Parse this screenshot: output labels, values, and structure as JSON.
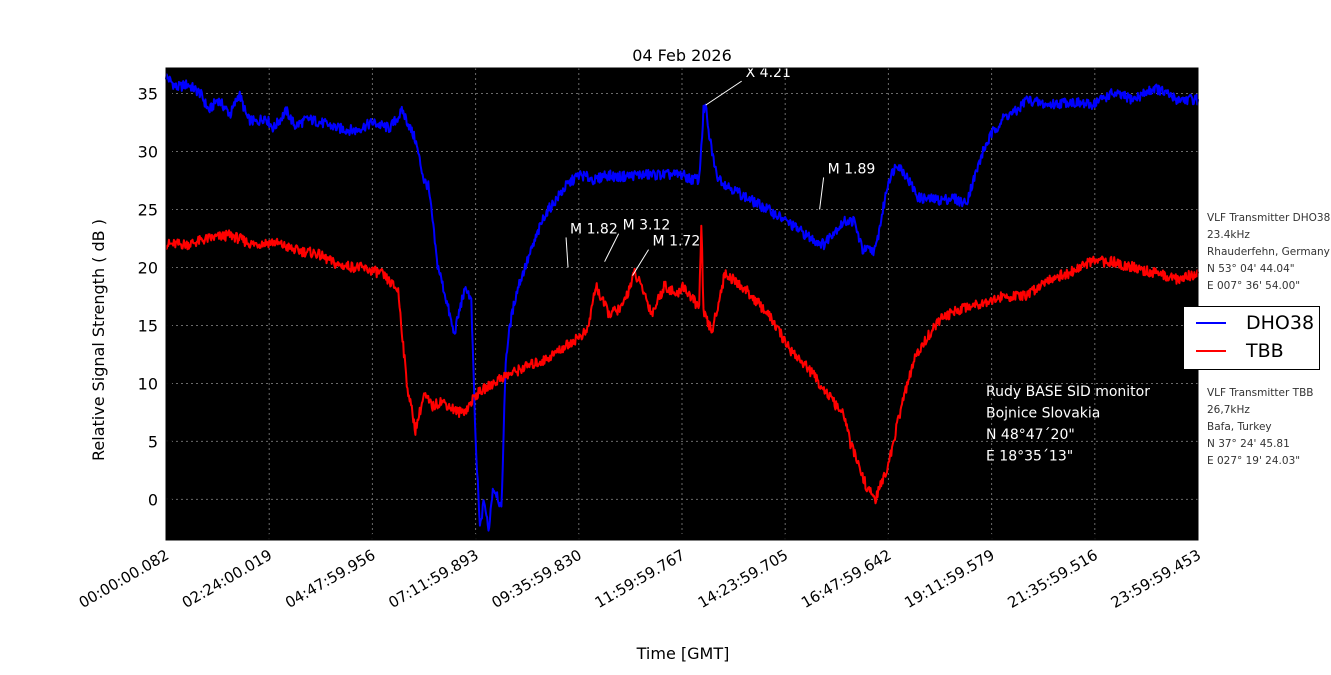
{
  "chart_data": {
    "type": "line",
    "title": "04 Feb 2026",
    "xlabel": "Time [GMT]",
    "ylabel": "Relative Signal Strength ( dB )",
    "xlim": [
      0.0,
      24.0
    ],
    "ylim": [
      -3.5,
      37.2
    ],
    "yticks": [
      0,
      5,
      10,
      15,
      20,
      25,
      30,
      35
    ],
    "xticks": [
      {
        "h": 0.0,
        "label": "00:00:00.082"
      },
      {
        "h": 2.4,
        "label": "02:24:00.019"
      },
      {
        "h": 4.8,
        "label": "04:47:59.956"
      },
      {
        "h": 7.2,
        "label": "07:11:59.893"
      },
      {
        "h": 9.6,
        "label": "09:35:59.830"
      },
      {
        "h": 12.0,
        "label": "11:59:59.767"
      },
      {
        "h": 14.4,
        "label": "14:23:59.705"
      },
      {
        "h": 16.8,
        "label": "16:47:59.642"
      },
      {
        "h": 19.2,
        "label": "19:11:59.579"
      },
      {
        "h": 21.6,
        "label": "21:35:59.516"
      },
      {
        "h": 24.0,
        "label": "23:59:59.453"
      }
    ],
    "grid": true,
    "background": "#000000",
    "series": [
      {
        "name": "DHO38",
        "color": "#0000ff",
        "x": [
          0.0,
          0.25,
          0.5,
          0.8,
          1.0,
          1.2,
          1.5,
          1.7,
          1.9,
          2.1,
          2.3,
          2.5,
          2.8,
          3.0,
          3.3,
          3.6,
          4.0,
          4.4,
          4.8,
          5.2,
          5.5,
          5.8,
          6.0,
          6.1,
          6.2,
          6.3,
          6.5,
          6.7,
          6.9,
          7.0,
          7.1,
          7.2,
          7.3,
          7.4,
          7.5,
          7.6,
          7.7,
          7.8,
          7.9,
          8.0,
          8.1,
          8.2,
          8.4,
          8.6,
          8.8,
          9.0,
          9.3,
          9.6,
          9.8,
          10.0,
          10.2,
          10.5,
          11.0,
          11.5,
          12.0,
          12.2,
          12.4,
          12.5,
          12.55,
          12.6,
          12.7,
          12.8,
          13.0,
          13.5,
          14.0,
          14.5,
          15.0,
          15.3,
          15.5,
          15.8,
          16.0,
          16.2,
          16.5,
          16.8,
          17.0,
          17.2,
          17.5,
          18.0,
          18.3,
          18.6,
          19.0,
          19.2,
          19.5,
          19.8,
          20.0,
          20.5,
          21.0,
          21.5,
          22.0,
          22.5,
          23.0,
          23.5,
          24.0
        ],
        "y": [
          36.5,
          35.5,
          35.8,
          35.0,
          33.5,
          34.5,
          33.2,
          35.0,
          32.8,
          32.5,
          33.0,
          32.0,
          33.5,
          32.2,
          32.8,
          32.5,
          32.0,
          31.8,
          32.5,
          32.0,
          33.5,
          31.0,
          27.5,
          27.0,
          24.0,
          20.5,
          17.5,
          14.2,
          17.5,
          18.2,
          17.0,
          5.0,
          -2.5,
          0.0,
          -2.8,
          1.0,
          0.5,
          -1.0,
          12.0,
          15.0,
          17.0,
          18.5,
          20.5,
          22.5,
          24.5,
          25.5,
          27.0,
          28.0,
          27.8,
          27.5,
          28.0,
          27.8,
          28.0,
          28.0,
          28.0,
          27.6,
          27.6,
          33.5,
          34.0,
          32.0,
          30.0,
          28.0,
          27.2,
          26.0,
          25.0,
          23.8,
          22.5,
          22.0,
          23.0,
          24.0,
          24.0,
          21.5,
          21.5,
          27.5,
          29.0,
          28.0,
          26.0,
          25.8,
          26.0,
          25.5,
          30.0,
          31.5,
          33.0,
          33.5,
          34.5,
          34.0,
          34.3,
          34.0,
          35.0,
          34.5,
          35.5,
          34.5,
          34.5
        ]
      },
      {
        "name": "TBB",
        "color": "#ff0000",
        "x": [
          0.0,
          0.5,
          1.0,
          1.5,
          2.0,
          2.5,
          3.0,
          3.5,
          4.0,
          4.5,
          5.0,
          5.4,
          5.6,
          5.8,
          6.0,
          6.2,
          6.4,
          6.6,
          6.8,
          7.0,
          7.2,
          7.4,
          7.6,
          7.8,
          8.0,
          8.4,
          8.8,
          9.0,
          9.2,
          9.4,
          9.6,
          9.8,
          10.0,
          10.1,
          10.3,
          10.6,
          10.9,
          11.1,
          11.3,
          11.6,
          11.9,
          12.0,
          12.2,
          12.4,
          12.45,
          12.5,
          12.7,
          13.0,
          13.5,
          14.0,
          14.5,
          15.0,
          15.2,
          15.4,
          15.6,
          15.8,
          15.9,
          16.1,
          16.3,
          16.5,
          16.8,
          17.1,
          17.4,
          17.7,
          18.0,
          18.5,
          19.0,
          19.5,
          20.0,
          20.5,
          21.0,
          21.5,
          22.0,
          22.5,
          23.0,
          23.5,
          24.0
        ],
        "y": [
          22.0,
          22.0,
          22.5,
          22.8,
          22.0,
          22.2,
          21.5,
          21.2,
          20.2,
          20.0,
          19.5,
          18.0,
          10.0,
          6.0,
          9.0,
          8.0,
          8.5,
          8.0,
          7.5,
          7.8,
          9.0,
          9.5,
          10.0,
          10.5,
          10.8,
          11.5,
          12.0,
          12.5,
          13.0,
          13.5,
          14.0,
          14.5,
          18.5,
          17.5,
          16.0,
          16.5,
          19.5,
          18.0,
          16.0,
          18.5,
          17.5,
          18.5,
          17.5,
          16.5,
          24.0,
          16.0,
          14.5,
          19.5,
          18.0,
          16.0,
          13.0,
          11.0,
          10.0,
          9.0,
          8.0,
          7.0,
          5.0,
          3.0,
          1.0,
          0.0,
          3.0,
          8.0,
          12.0,
          14.0,
          15.5,
          16.5,
          17.0,
          17.5,
          17.5,
          19.0,
          19.5,
          20.5,
          20.5,
          20.0,
          19.5,
          19.0,
          19.5
        ]
      }
    ],
    "annotations": [
      {
        "text": "X 4.21",
        "x": 12.55,
        "y": 34.0
      },
      {
        "text": "M 1.82",
        "x": 9.35,
        "y": 20.0
      },
      {
        "text": "M 3.12",
        "x": 10.2,
        "y": 20.5
      },
      {
        "text": "M 1.72",
        "x": 10.85,
        "y": 19.3
      },
      {
        "text": "M 1.89",
        "x": 15.2,
        "y": 25.0
      }
    ],
    "station_text": [
      "Rudy BASE SID monitor",
      "Bojnice Slovakia",
      "N 48°47´20\"",
      "E 18°35´13\""
    ],
    "legend": [
      {
        "name": "DHO38",
        "color": "#0000ff"
      },
      {
        "name": "TBB",
        "color": "#ff0000"
      }
    ],
    "legend_placement": "right"
  },
  "side_notes": {
    "dho38": [
      "VLF Transmitter DHO38",
      "23.4kHz",
      "Rhauderfehn, Germany",
      "N 53° 04' 44.04\"",
      "E 007° 36' 54.00\""
    ],
    "tbb": [
      "VLF Transmitter TBB",
      "26,7kHz",
      "Bafa, Turkey",
      "N 37° 24' 45.81",
      "E 027° 19' 24.03\""
    ]
  }
}
